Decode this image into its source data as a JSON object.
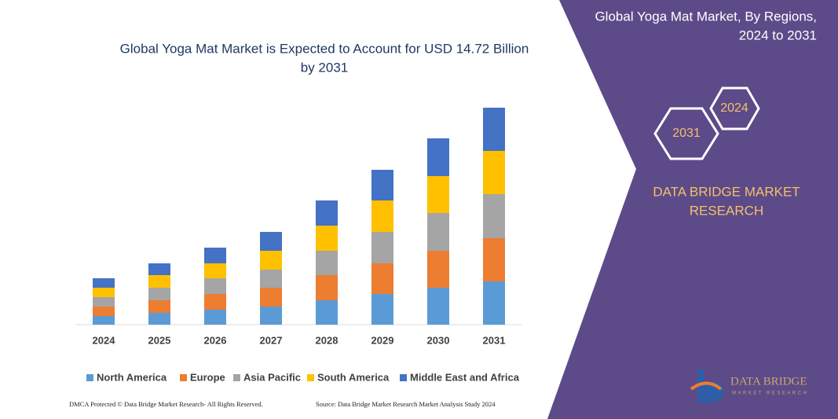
{
  "chart_data": {
    "type": "stacked-bar",
    "title": [
      "Global Yoga Mat Market is Expected to Account for USD 14.72 Billion",
      "by 2031"
    ],
    "categories": [
      "2024",
      "2025",
      "2026",
      "2027",
      "2028",
      "2029",
      "2030",
      "2031"
    ],
    "series": [
      {
        "name": "North America",
        "color": "#5b9bd5",
        "values": [
          11,
          15,
          19,
          23,
          31,
          39,
          47,
          55
        ]
      },
      {
        "name": "Europe",
        "color": "#ed7d31",
        "values": [
          12,
          16,
          20,
          24,
          32,
          39,
          47,
          55
        ]
      },
      {
        "name": "Asia Pacific",
        "color": "#a5a5a5",
        "values": [
          12,
          16,
          20,
          23,
          31,
          40,
          48,
          56
        ]
      },
      {
        "name": "South America",
        "color": "#ffc000",
        "values": [
          12,
          16,
          19,
          24,
          32,
          40,
          47,
          55
        ]
      },
      {
        "name": "Middle East and Africa",
        "color": "#4472c4",
        "values": [
          12,
          15,
          20,
          24,
          32,
          39,
          48,
          55
        ]
      }
    ]
  },
  "panel": {
    "title_lines": [
      "Global Yoga Mat Market, By Regions,",
      "2024 to 2031"
    ],
    "hexagons": [
      "2024",
      "2031"
    ],
    "brand_lines": [
      "DATA BRIDGE MARKET",
      "RESEARCH"
    ]
  },
  "logo": {
    "lines": [
      "DATA BRIDGE",
      "MARKET RESEARCH"
    ]
  },
  "footer": {
    "left": "DMCA Protected © Data Bridge Market Research-  All Rights Reserved.",
    "right": "Source: Data Bridge Market Research  Market Analysis Study 2024"
  }
}
